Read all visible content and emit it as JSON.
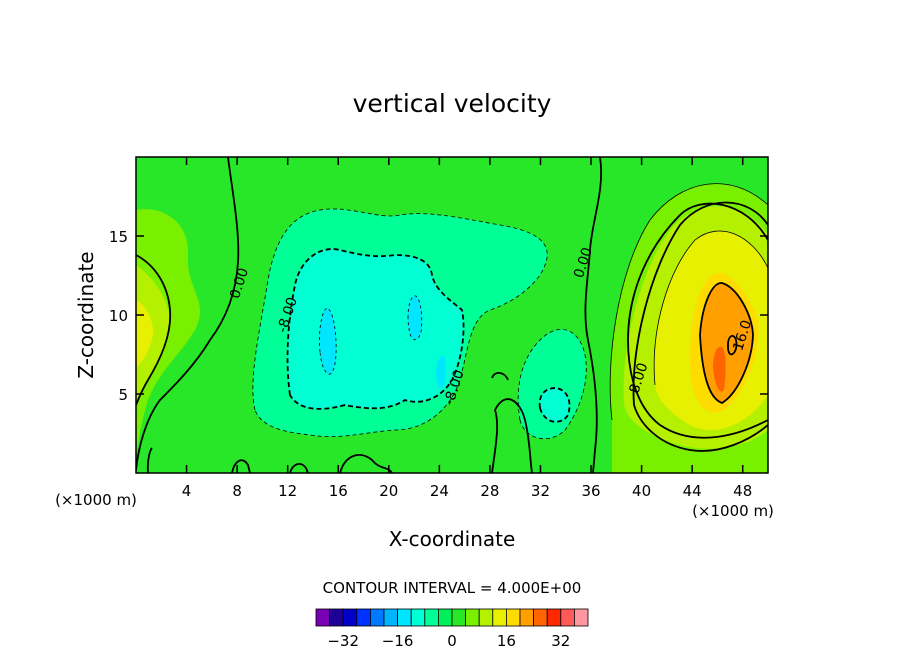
{
  "chart_data": {
    "type": "heatmap",
    "title": "vertical velocity",
    "xlabel": "X-coordinate",
    "ylabel": "Z-coordinate",
    "x_unit": "(×1000 m)",
    "y_unit": "(×1000 m)",
    "xlim": [
      0,
      50
    ],
    "ylim": [
      0,
      20
    ],
    "x_ticks": [
      "4",
      "8",
      "12",
      "16",
      "20",
      "24",
      "28",
      "32",
      "36",
      "40",
      "44",
      "48"
    ],
    "x_tick_values": [
      4,
      8,
      12,
      16,
      20,
      24,
      28,
      32,
      36,
      40,
      44,
      48
    ],
    "y_ticks": [
      "5",
      "10",
      "15"
    ],
    "y_tick_values": [
      5,
      10,
      15
    ],
    "contour_interval_text": "CONTOUR INTERVAL = 4.000E+00",
    "contour_interval": 4,
    "contour_labels": [
      {
        "text": "0.00",
        "x": 8.2,
        "y": 12.0
      },
      {
        "text": "0.00",
        "x": 35.4,
        "y": 13.3
      },
      {
        "text": "-8.00",
        "x": 12.0,
        "y": 10.0
      },
      {
        "text": "-8.00",
        "x": 25.2,
        "y": 5.4
      },
      {
        "text": "8.00",
        "x": 39.8,
        "y": 6.0
      },
      {
        "text": "16.0",
        "x": 48.0,
        "y": 8.7
      }
    ],
    "colorbar": {
      "levels": [
        -36,
        -32,
        -28,
        -24,
        -20,
        -16,
        -12,
        -8,
        -4,
        0,
        4,
        8,
        12,
        16,
        20,
        24,
        28,
        32,
        36
      ],
      "colors": [
        "#7a00b4",
        "#1e0096",
        "#0000c8",
        "#0032ff",
        "#0078ff",
        "#00b4ff",
        "#00e6ff",
        "#00ffd2",
        "#00ff96",
        "#00f05a",
        "#28e628",
        "#78f000",
        "#b4f000",
        "#e6f000",
        "#ffdc00",
        "#ffa000",
        "#ff6400",
        "#ff2800",
        "#ff5a5a",
        "#ff96a0"
      ],
      "tick_labels": [
        "−32",
        "−16",
        "0",
        "16",
        "32"
      ],
      "tick_values": [
        -32,
        -16,
        0,
        16,
        32
      ]
    },
    "features": [
      {
        "kind": "updraft",
        "center": [
          46,
          8
        ],
        "peak": 30
      },
      {
        "kind": "updraft",
        "center": [
          1,
          9
        ],
        "peak": 10
      },
      {
        "kind": "downdraft",
        "center": [
          15,
          9
        ],
        "peak": -18
      },
      {
        "kind": "downdraft",
        "center": [
          22,
          10
        ],
        "peak": -18
      },
      {
        "kind": "downdraft",
        "center": [
          33,
          4
        ],
        "peak": -10
      }
    ]
  }
}
